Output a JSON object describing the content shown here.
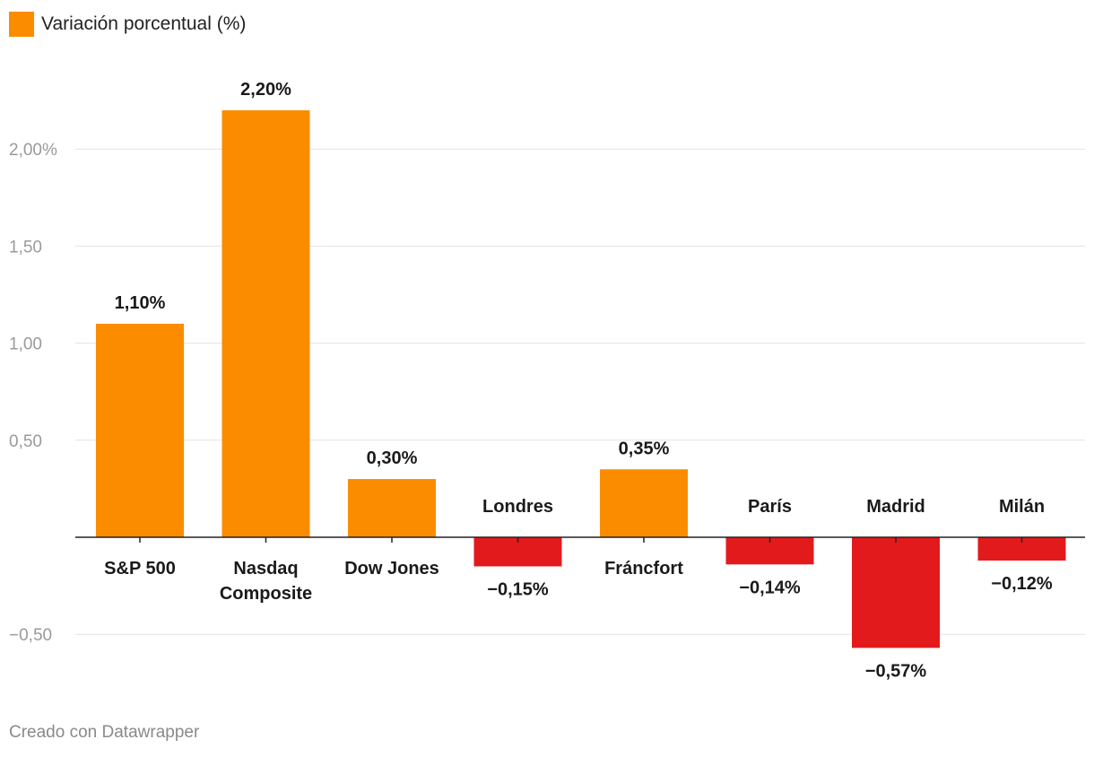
{
  "chart_data": {
    "type": "bar",
    "legend": [
      {
        "label": "Variación porcentual (%)",
        "color": "#FB8C00"
      }
    ],
    "legend_position": "top-left",
    "categories": [
      "S&P 500",
      "Nasdaq Composite",
      "Dow Jones",
      "Londres",
      "Fráncfort",
      "París",
      "Madrid",
      "Milán"
    ],
    "values": [
      1.1,
      2.2,
      0.3,
      -0.15,
      0.35,
      -0.14,
      -0.57,
      -0.12
    ],
    "value_labels": [
      "1,10%",
      "2,20%",
      "0,30%",
      "−0,15%",
      "0,35%",
      "−0,14%",
      "−0,57%",
      "−0,12%"
    ],
    "positive_color": "#FB8C00",
    "negative_color": "#E31A1C",
    "y_ticks": [
      {
        "value": 2.0,
        "label": "2,00%"
      },
      {
        "value": 1.5,
        "label": "1,50"
      },
      {
        "value": 1.0,
        "label": "1,00"
      },
      {
        "value": 0.5,
        "label": "0,50"
      },
      {
        "value": -0.5,
        "label": "−0,50"
      }
    ],
    "ylim": [
      -0.67,
      2.55
    ],
    "grid": true,
    "title": "",
    "xlabel": "",
    "ylabel": ""
  },
  "footer": {
    "credit": "Creado con Datawrapper"
  }
}
